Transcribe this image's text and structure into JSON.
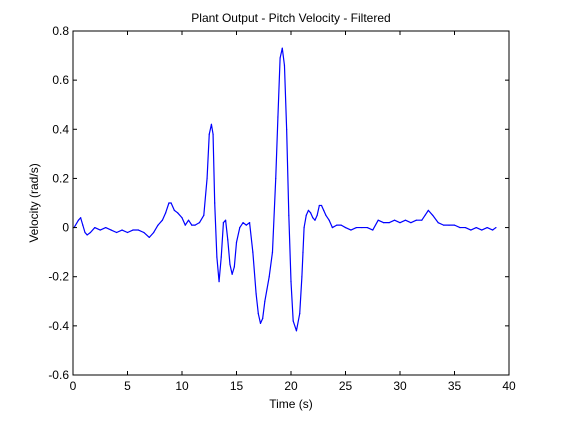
{
  "chart_data": {
    "type": "line",
    "title": "Plant Output - Pitch Velocity - Filtered",
    "xlabel": "Time (s)",
    "ylabel": "Velocity (rad/s)",
    "xlim": [
      0,
      40
    ],
    "ylim": [
      -0.6,
      0.8
    ],
    "xticks": [
      0,
      5,
      10,
      15,
      20,
      25,
      30,
      35,
      40
    ],
    "yticks": [
      -0.6,
      -0.4,
      -0.2,
      0,
      0.2,
      0.4,
      0.6,
      0.8
    ],
    "xtick_labels": [
      "0",
      "5",
      "10",
      "15",
      "20",
      "25",
      "30",
      "35",
      "40"
    ],
    "ytick_labels": [
      "-0.6",
      "-0.4",
      "-0.2",
      "0",
      "0.2",
      "0.4",
      "0.6",
      "0.8"
    ],
    "grid": false,
    "line_color": "#0000ff",
    "series": [
      {
        "x": [
          0.1,
          0.5,
          0.7,
          0.9,
          1.1,
          1.3,
          1.6,
          2.0,
          2.5,
          3.0,
          3.5,
          4.0,
          4.5,
          5.0,
          5.5,
          6.0,
          6.5,
          7.0,
          7.4,
          7.8,
          8.2,
          8.5,
          8.8,
          9.0,
          9.3,
          9.6,
          10.0,
          10.3,
          10.6,
          10.9,
          11.2,
          11.6,
          12.0,
          12.3,
          12.5,
          12.7,
          12.85,
          13.0,
          13.2,
          13.4,
          13.6,
          13.8,
          14.0,
          14.2,
          14.4,
          14.6,
          14.8,
          15.0,
          15.3,
          15.6,
          15.9,
          16.2,
          16.5,
          16.8,
          17.0,
          17.2,
          17.4,
          17.6,
          17.8,
          18.0,
          18.3,
          18.6,
          18.8,
          19.0,
          19.2,
          19.4,
          19.6,
          19.8,
          20.0,
          20.2,
          20.5,
          20.8,
          21.0,
          21.1,
          21.2,
          21.4,
          21.6,
          21.8,
          22.0,
          22.2,
          22.4,
          22.6,
          22.8,
          23.0,
          23.2,
          23.5,
          23.8,
          24.2,
          24.6,
          25.0,
          25.5,
          26.0,
          26.5,
          27.0,
          27.5,
          28.0,
          28.5,
          29.0,
          29.5,
          30.0,
          30.5,
          31.0,
          31.5,
          32.0,
          32.3,
          32.6,
          33.0,
          33.5,
          34.0,
          34.5,
          35.0,
          35.5,
          36.0,
          36.5,
          37.0,
          37.5,
          38.0,
          38.5,
          38.8
        ],
        "y": [
          0.0,
          0.03,
          0.04,
          0.01,
          -0.02,
          -0.03,
          -0.02,
          0.0,
          -0.01,
          0.0,
          -0.01,
          -0.02,
          -0.01,
          -0.02,
          -0.01,
          -0.01,
          -0.02,
          -0.04,
          -0.02,
          0.01,
          0.03,
          0.06,
          0.1,
          0.1,
          0.07,
          0.06,
          0.04,
          0.01,
          0.03,
          0.01,
          0.01,
          0.02,
          0.05,
          0.2,
          0.38,
          0.42,
          0.38,
          0.1,
          -0.12,
          -0.22,
          -0.12,
          0.02,
          0.03,
          -0.05,
          -0.15,
          -0.19,
          -0.16,
          -0.06,
          0.0,
          0.02,
          0.01,
          0.02,
          -0.1,
          -0.27,
          -0.35,
          -0.39,
          -0.37,
          -0.3,
          -0.25,
          -0.2,
          -0.1,
          0.2,
          0.45,
          0.69,
          0.73,
          0.66,
          0.4,
          0.05,
          -0.22,
          -0.38,
          -0.42,
          -0.35,
          -0.2,
          -0.1,
          0.0,
          0.05,
          0.07,
          0.06,
          0.04,
          0.03,
          0.05,
          0.09,
          0.09,
          0.07,
          0.05,
          0.03,
          0.0,
          0.01,
          0.01,
          0.0,
          -0.01,
          0.0,
          0.0,
          0.0,
          -0.01,
          0.03,
          0.02,
          0.02,
          0.03,
          0.02,
          0.03,
          0.02,
          0.03,
          0.03,
          0.05,
          0.07,
          0.05,
          0.02,
          0.01,
          0.01,
          0.01,
          0.0,
          0.0,
          -0.01,
          0.0,
          -0.01,
          0.0,
          -0.01,
          0.0
        ]
      }
    ]
  }
}
